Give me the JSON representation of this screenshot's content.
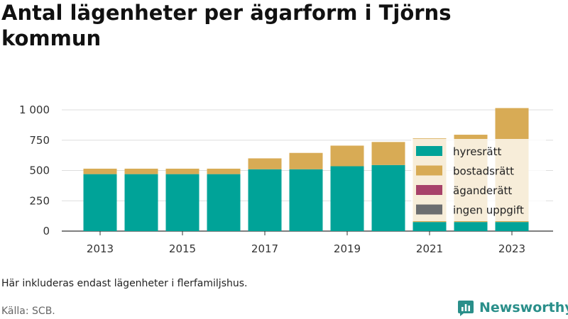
{
  "title": "Antal lägenheter per ägarform i Tjörns kommun",
  "note": "Här inkluderas endast lägenheter i flerfamiljshus.",
  "source": "Källa: SCB.",
  "brand": "Newsworthy",
  "colors": {
    "hyresratt": "#00a398",
    "bostadsratt": "#d8ab55",
    "aganderatt": "#a8426a",
    "ingen_uppgift": "#6c6e70",
    "brand": "#2a8f8a"
  },
  "chart_data": {
    "type": "bar",
    "stacked": true,
    "title": "Antal lägenheter per ägarform i Tjörns kommun",
    "categories": [
      "2013",
      "2014",
      "2015",
      "2016",
      "2017",
      "2018",
      "2019",
      "2020",
      "2021",
      "2022",
      "2023"
    ],
    "x_tick_labels": [
      "2013",
      "2015",
      "2017",
      "2019",
      "2021",
      "2023"
    ],
    "y_ticks": [
      0,
      250,
      500,
      750,
      1000
    ],
    "y_tick_labels": [
      "0",
      "250",
      "500",
      "750",
      "1 000"
    ],
    "ylim": [
      0,
      1050
    ],
    "grid": true,
    "legend_position": "right",
    "series": [
      {
        "name": "hyresrätt",
        "values": [
          470,
          470,
          470,
          470,
          510,
          510,
          535,
          545,
          75,
          75,
          75
        ]
      },
      {
        "name": "bostadsrätt",
        "values": [
          45,
          45,
          45,
          45,
          90,
          135,
          170,
          190,
          690,
          720,
          940
        ]
      },
      {
        "name": "äganderätt",
        "values": [
          0,
          0,
          0,
          0,
          0,
          0,
          0,
          0,
          0,
          0,
          0
        ]
      },
      {
        "name": "ingen uppgift",
        "values": [
          0,
          0,
          0,
          0,
          0,
          0,
          0,
          0,
          0,
          0,
          0
        ]
      }
    ]
  }
}
